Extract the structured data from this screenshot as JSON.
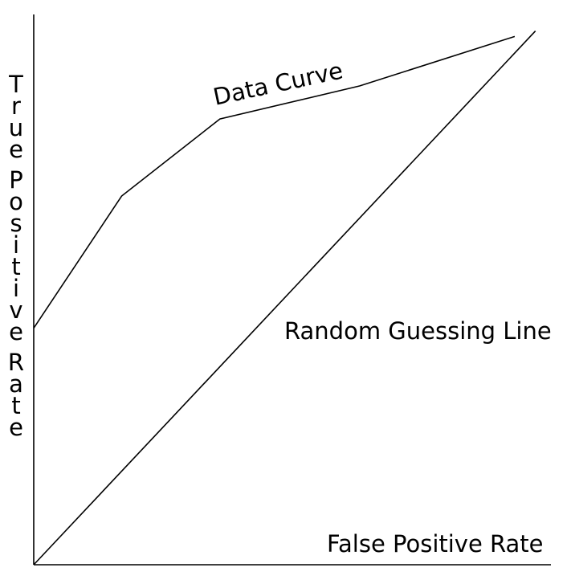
{
  "chart_data": {
    "type": "line",
    "title": "",
    "xlabel": "False Positive Rate",
    "ylabel": "True Positive Rate",
    "xlim": [
      0,
      1
    ],
    "ylim": [
      0,
      1
    ],
    "grid": false,
    "series": [
      {
        "name": "Data Curve",
        "label": "Data Curve",
        "x": [
          0.0,
          0.17,
          0.36,
          0.63,
          0.93
        ],
        "y": [
          0.43,
          0.67,
          0.81,
          0.87,
          0.96
        ]
      },
      {
        "name": "Random Guessing Line",
        "label": "Random Guessing Line",
        "x": [
          0.0,
          0.97
        ],
        "y": [
          0.0,
          0.97
        ]
      }
    ]
  }
}
